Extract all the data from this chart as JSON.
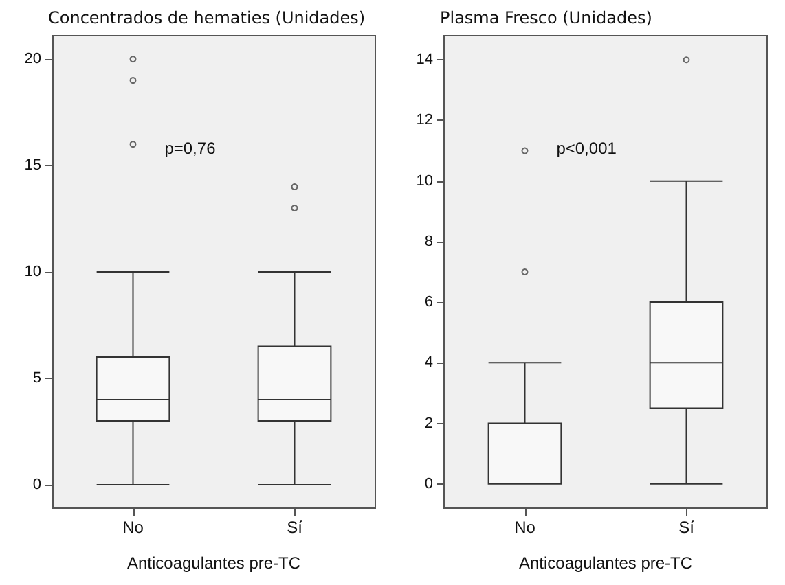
{
  "chart_data": [
    {
      "type": "box",
      "title": "Concentrados de hematies (Unidades)",
      "xlabel": "Anticoagulantes pre-TC",
      "categories": [
        "No",
        "Sí"
      ],
      "ylim": [
        -1.1,
        21.1
      ],
      "yticks": [
        0,
        5,
        10,
        15,
        20
      ],
      "grid": false,
      "annotations": [
        "p=0,76"
      ],
      "boxes": [
        {
          "low": 0,
          "q1": 3,
          "median": 4,
          "q3": 6,
          "high": 10,
          "outliers": [
            16,
            19,
            20
          ]
        },
        {
          "low": 0,
          "q1": 3,
          "median": 4,
          "q3": 6.5,
          "high": 10,
          "outliers": [
            13,
            14
          ]
        }
      ]
    },
    {
      "type": "box",
      "title": "Plasma Fresco (Unidades)",
      "xlabel": "Anticoagulantes pre-TC",
      "categories": [
        "No",
        "Sí"
      ],
      "ylim": [
        -0.8,
        14.8
      ],
      "yticks": [
        0,
        2,
        4,
        6,
        8,
        10,
        12,
        14
      ],
      "grid": false,
      "annotations": [
        "p<0,001"
      ],
      "boxes": [
        {
          "low": 0,
          "q1": 0,
          "median": 0,
          "q3": 2,
          "high": 4,
          "outliers": [
            7,
            11
          ]
        },
        {
          "low": 0,
          "q1": 2.5,
          "median": 4,
          "q3": 6,
          "high": 10,
          "outliers": [
            14
          ]
        }
      ]
    }
  ]
}
